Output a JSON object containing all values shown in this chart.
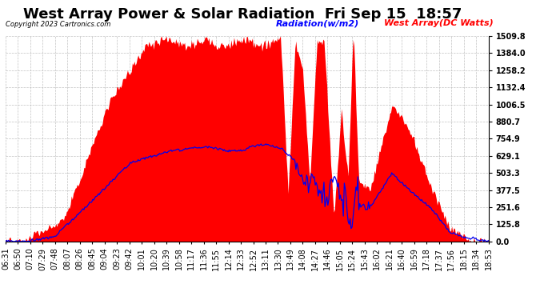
{
  "title": "West Array Power & Solar Radiation  Fri Sep 15  18:57",
  "copyright": "Copyright 2023 Cartronics.com",
  "legend_radiation": "Radiation(w/m2)",
  "legend_west": "West Array(DC Watts)",
  "y_ticks": [
    0.0,
    125.8,
    251.6,
    377.5,
    503.3,
    629.1,
    754.9,
    880.7,
    1006.5,
    1132.4,
    1258.2,
    1384.0,
    1509.8
  ],
  "ymax": 1509.8,
  "ymin": 0.0,
  "radiation_color": "#FF0000",
  "power_color": "#0000EE",
  "background_color": "#FFFFFF",
  "plot_bg_color": "#FFFFFF",
  "grid_color": "#BBBBBB",
  "title_fontsize": 13,
  "label_fontsize": 8,
  "tick_fontsize": 7,
  "x_labels": [
    "06:31",
    "06:50",
    "07:10",
    "07:29",
    "07:48",
    "08:07",
    "08:26",
    "08:45",
    "09:04",
    "09:23",
    "09:42",
    "10:01",
    "10:20",
    "10:39",
    "10:58",
    "11:17",
    "11:36",
    "11:55",
    "12:14",
    "12:33",
    "12:52",
    "13:11",
    "13:30",
    "13:49",
    "14:08",
    "14:27",
    "14:46",
    "15:05",
    "15:24",
    "15:43",
    "16:02",
    "16:21",
    "16:40",
    "16:59",
    "17:18",
    "17:37",
    "17:56",
    "18:15",
    "18:34",
    "18:53"
  ]
}
